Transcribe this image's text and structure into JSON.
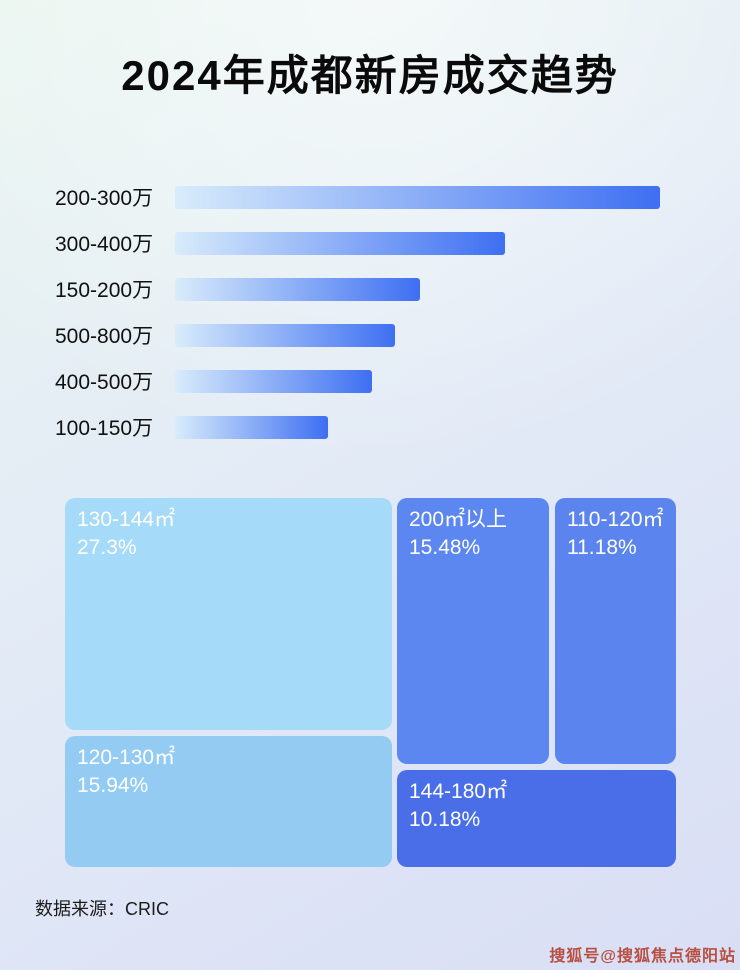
{
  "page": {
    "title": "2024年成都新房成交趋势",
    "source": "数据来源：CRIC",
    "watermark": "搜狐号@搜狐焦点德阳站"
  },
  "colors": {
    "bar_start": "#d8ecfb",
    "bar_end": "#3e6ff2",
    "watermark": "#b85042",
    "treemap_blocks": [
      "#a5daf8",
      "#5d87f0",
      "#5b84ee",
      "#93cbf3",
      "#4a6ee8"
    ]
  },
  "chart_data": [
    {
      "type": "bar",
      "orientation": "horizontal",
      "title": "2024年成都新房成交趋势 — 按总价段",
      "categories": [
        "200-300万",
        "300-400万",
        "150-200万",
        "500-800万",
        "400-500万",
        "100-150万"
      ],
      "values": [
        100,
        68,
        50.5,
        45.4,
        40.6,
        31.5
      ],
      "unit": "relative bar length, % of longest bar (no axis labels shown)",
      "xlabel": "",
      "ylabel": "",
      "grid": false,
      "legend": false
    },
    {
      "type": "treemap",
      "title": "按面积段成交占比",
      "items": [
        {
          "label": "130-144㎡",
          "value": "27.3%"
        },
        {
          "label": "200㎡以上",
          "value": "15.48%"
        },
        {
          "label": "110-120㎡",
          "value": "11.18%"
        },
        {
          "label": "120-130㎡",
          "value": "15.94%"
        },
        {
          "label": "144-180㎡",
          "value": "10.18%"
        }
      ]
    }
  ]
}
